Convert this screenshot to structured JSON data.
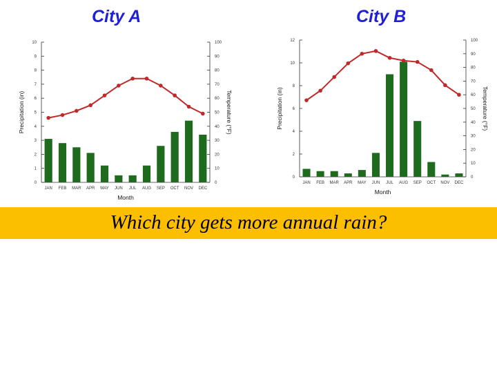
{
  "titles": {
    "city_a": "City A",
    "city_b": "City B"
  },
  "question": "Which city gets more annual rain?",
  "colors": {
    "bar": "#1e6b1e",
    "line": "#c0282a",
    "title": "#1f1fd6",
    "band": "#fbbf00"
  },
  "chart_data": [
    {
      "type": "bar",
      "title": "City A",
      "categories": [
        "JAN",
        "FEB",
        "MAR",
        "APR",
        "MAY",
        "JUN",
        "JUL",
        "AUG",
        "SEP",
        "OCT",
        "NOV",
        "DEC"
      ],
      "xlabel": "Month",
      "ylabel": "Precipitation (in)",
      "y2label": "Temperature (°F)",
      "ylim": [
        0,
        10
      ],
      "y2lim": [
        0,
        100
      ],
      "yticks": [
        0,
        1,
        2,
        3,
        4,
        5,
        6,
        7,
        8,
        9,
        10
      ],
      "y2ticks": [
        0,
        10,
        20,
        30,
        40,
        50,
        60,
        70,
        80,
        90,
        100
      ],
      "series": [
        {
          "values": [
            3.1,
            2.8,
            2.5,
            2.1,
            1.2,
            0.5,
            0.5,
            1.2,
            2.6,
            3.6,
            4.4,
            3.4
          ]
        },
        {
          "values": [
            46,
            48,
            51,
            55,
            62,
            69,
            74,
            74,
            69,
            62,
            54,
            49
          ]
        }
      ]
    },
    {
      "type": "bar",
      "title": "City B",
      "categories": [
        "JAN",
        "FEB",
        "MAR",
        "APR",
        "MAY",
        "JUN",
        "JUL",
        "AUG",
        "SEP",
        "OCT",
        "NOV",
        "DEC"
      ],
      "xlabel": "Month",
      "ylabel": "Precipitation (in)",
      "y2label": "Temperature (°F)",
      "ylim": [
        0,
        12
      ],
      "y2lim": [
        0,
        100
      ],
      "yticks": [
        0,
        2,
        4,
        6,
        8,
        10,
        12
      ],
      "y2ticks": [
        0,
        10,
        20,
        30,
        40,
        50,
        60,
        70,
        80,
        90,
        100
      ],
      "series": [
        {
          "values": [
            0.7,
            0.5,
            0.5,
            0.3,
            0.6,
            2.1,
            9.0,
            10.1,
            4.9,
            1.3,
            0.2,
            0.3
          ]
        },
        {
          "values": [
            56,
            63,
            73,
            83,
            90,
            92,
            87,
            85,
            84,
            78,
            67,
            60
          ]
        }
      ]
    }
  ]
}
